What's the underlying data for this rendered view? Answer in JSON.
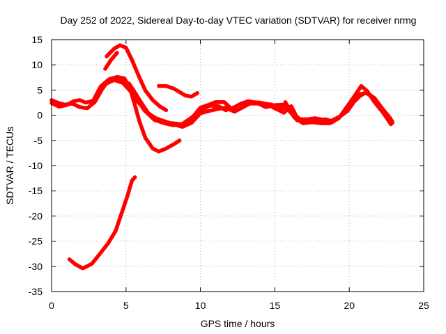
{
  "chart_data": {
    "type": "scatter",
    "title": "Day 252 of 2022, Sidereal Day-to-day VTEC variation (SDTVAR) for receiver nrmg",
    "xlabel": "GPS time / hours",
    "ylabel": "SDTVAR / TECUs",
    "xlim": [
      0,
      25
    ],
    "ylim": [
      -35,
      15
    ],
    "xticks": [
      "0",
      "5",
      "10",
      "15",
      "20",
      "25"
    ],
    "yticks": [
      "15",
      "10",
      "5",
      "0",
      "-5",
      "-10",
      "-15",
      "-20",
      "-25",
      "-30",
      "-35"
    ],
    "grid": true,
    "colors": {
      "series": "#ff0000",
      "grid": "#b0b0b0",
      "axis": "#000000"
    },
    "series": [
      {
        "name": "arc-1",
        "points": [
          [
            0.0,
            3.0
          ],
          [
            0.4,
            2.5
          ],
          [
            0.9,
            2.1
          ],
          [
            1.4,
            2.3
          ],
          [
            1.9,
            1.6
          ],
          [
            2.4,
            1.4
          ],
          [
            2.9,
            2.6
          ],
          [
            3.4,
            5.2
          ],
          [
            3.9,
            7.2
          ],
          [
            4.4,
            7.6
          ],
          [
            4.9,
            7.3
          ],
          [
            5.3,
            5.0
          ],
          [
            5.6,
            2.0
          ],
          [
            5.9,
            -1.2
          ],
          [
            6.3,
            -4.5
          ],
          [
            6.8,
            -6.6
          ],
          [
            7.2,
            -7.2
          ],
          [
            7.7,
            -6.6
          ],
          [
            8.3,
            -5.6
          ],
          [
            8.6,
            -5.0
          ]
        ]
      },
      {
        "name": "arc-2",
        "points": [
          [
            0.0,
            2.4
          ],
          [
            0.5,
            1.7
          ],
          [
            1.0,
            2.0
          ],
          [
            1.5,
            2.8
          ],
          [
            1.9,
            3.0
          ],
          [
            2.3,
            2.5
          ],
          [
            2.8,
            2.9
          ],
          [
            3.3,
            5.7
          ],
          [
            3.8,
            7.0
          ],
          [
            4.3,
            6.9
          ],
          [
            4.8,
            6.4
          ],
          [
            5.2,
            5.1
          ],
          [
            5.7,
            3.5
          ],
          [
            6.2,
            1.1
          ],
          [
            6.9,
            -0.9
          ],
          [
            7.5,
            -1.5
          ],
          [
            8.2,
            -1.6
          ],
          [
            8.9,
            -1.9
          ],
          [
            9.5,
            -0.3
          ],
          [
            10.0,
            1.5
          ],
          [
            10.5,
            2.0
          ],
          [
            11.0,
            2.6
          ],
          [
            11.6,
            2.6
          ],
          [
            12.1,
            1.2
          ],
          [
            12.6,
            2.1
          ],
          [
            13.2,
            2.8
          ],
          [
            13.7,
            2.5
          ],
          [
            14.3,
            2.3
          ],
          [
            14.8,
            2.1
          ],
          [
            15.2,
            1.1
          ],
          [
            15.6,
            0.5
          ],
          [
            16.1,
            1.8
          ],
          [
            16.5,
            -0.5
          ],
          [
            16.9,
            -1.3
          ],
          [
            17.4,
            -1.2
          ],
          [
            17.9,
            -1.2
          ],
          [
            18.4,
            -0.8
          ],
          [
            18.9,
            -1.3
          ],
          [
            19.3,
            -0.5
          ]
        ]
      },
      {
        "name": "arc-3",
        "points": [
          [
            3.6,
            9.2
          ],
          [
            4.0,
            11.0
          ],
          [
            4.4,
            12.4
          ]
        ]
      },
      {
        "name": "arc-4",
        "points": [
          [
            3.7,
            6.3
          ],
          [
            4.2,
            7.0
          ],
          [
            4.7,
            6.7
          ],
          [
            5.2,
            6.3
          ],
          [
            5.6,
            4.5
          ],
          [
            6.0,
            2.6
          ],
          [
            6.5,
            0.4
          ],
          [
            7.0,
            -0.6
          ],
          [
            7.6,
            -1.2
          ],
          [
            8.2,
            -1.8
          ],
          [
            8.8,
            -2.3
          ],
          [
            9.4,
            -1.5
          ],
          [
            10.0,
            0.4
          ],
          [
            10.5,
            0.8
          ],
          [
            11.1,
            1.2
          ],
          [
            11.7,
            1.5
          ],
          [
            12.3,
            0.7
          ],
          [
            12.8,
            1.5
          ],
          [
            13.3,
            2.3
          ],
          [
            13.9,
            2.3
          ],
          [
            14.4,
            1.6
          ],
          [
            15.0,
            2.0
          ],
          [
            15.6,
            2.1
          ],
          [
            16.1,
            0.4
          ],
          [
            16.5,
            -1.0
          ],
          [
            17.1,
            -1.5
          ],
          [
            17.6,
            -1.2
          ],
          [
            18.2,
            -1.1
          ],
          [
            18.7,
            -1.5
          ],
          [
            19.3,
            -0.4
          ],
          [
            19.9,
            0.9
          ],
          [
            20.3,
            2.6
          ],
          [
            20.7,
            3.8
          ],
          [
            21.1,
            4.5
          ],
          [
            21.6,
            3.5
          ],
          [
            22.1,
            1.5
          ],
          [
            22.6,
            -0.6
          ],
          [
            22.9,
            -1.5
          ]
        ]
      },
      {
        "name": "arc-5",
        "points": [
          [
            5.5,
            3.6
          ],
          [
            6.0,
            2.0
          ],
          [
            6.5,
            0.4
          ],
          [
            7.0,
            -0.8
          ],
          [
            7.6,
            -1.6
          ],
          [
            8.2,
            -2.0
          ],
          [
            8.8,
            -1.7
          ],
          [
            9.4,
            -0.5
          ],
          [
            10.0,
            0.9
          ],
          [
            10.6,
            1.9
          ],
          [
            11.2,
            1.8
          ],
          [
            11.7,
            1.0
          ],
          [
            12.3,
            1.6
          ],
          [
            12.8,
            2.4
          ],
          [
            13.4,
            2.6
          ],
          [
            14.0,
            2.5
          ],
          [
            14.5,
            2.2
          ],
          [
            15.1,
            1.2
          ],
          [
            15.7,
            1.5
          ],
          [
            16.2,
            0.3
          ],
          [
            16.7,
            -0.8
          ],
          [
            17.2,
            -0.8
          ],
          [
            17.7,
            -0.6
          ],
          [
            18.3,
            -0.9
          ],
          [
            18.8,
            -1.1
          ],
          [
            19.4,
            -0.2
          ],
          [
            19.9,
            1.5
          ],
          [
            20.3,
            3.3
          ],
          [
            20.7,
            4.2
          ],
          [
            21.2,
            4.4
          ],
          [
            21.7,
            3.4
          ],
          [
            22.2,
            1.4
          ],
          [
            22.7,
            -0.4
          ],
          [
            22.9,
            -1.3
          ]
        ]
      },
      {
        "name": "arc-6",
        "points": [
          [
            15.7,
            2.6
          ],
          [
            16.3,
            -0.4
          ],
          [
            16.9,
            -1.6
          ],
          [
            17.5,
            -1.4
          ],
          [
            18.1,
            -1.6
          ],
          [
            18.7,
            -1.6
          ],
          [
            19.3,
            -0.6
          ],
          [
            19.9,
            1.9
          ],
          [
            20.4,
            4.0
          ],
          [
            20.8,
            5.8
          ],
          [
            21.2,
            4.8
          ],
          [
            21.7,
            2.6
          ],
          [
            22.3,
            0.4
          ],
          [
            22.8,
            -1.8
          ]
        ]
      },
      {
        "name": "arc-7",
        "points": [
          [
            3.7,
            11.7
          ],
          [
            4.2,
            13.2
          ],
          [
            4.6,
            13.9
          ],
          [
            5.0,
            13.4
          ],
          [
            5.4,
            11.0
          ],
          [
            5.9,
            7.5
          ],
          [
            6.3,
            4.9
          ],
          [
            6.8,
            3.0
          ],
          [
            7.3,
            1.7
          ],
          [
            7.7,
            1.0
          ]
        ]
      },
      {
        "name": "arc-8",
        "points": [
          [
            7.2,
            5.8
          ],
          [
            7.7,
            5.8
          ],
          [
            8.2,
            5.3
          ],
          [
            8.6,
            4.6
          ],
          [
            9.0,
            3.9
          ],
          [
            9.4,
            3.7
          ],
          [
            9.8,
            4.4
          ]
        ]
      },
      {
        "name": "arc-9",
        "points": [
          [
            1.2,
            -28.6
          ],
          [
            1.6,
            -29.6
          ],
          [
            2.1,
            -30.4
          ],
          [
            2.7,
            -29.5
          ],
          [
            3.3,
            -27.3
          ],
          [
            3.8,
            -25.4
          ],
          [
            4.3,
            -23.0
          ],
          [
            4.7,
            -19.5
          ],
          [
            5.1,
            -16.0
          ],
          [
            5.4,
            -13.0
          ],
          [
            5.6,
            -12.3
          ]
        ]
      }
    ]
  }
}
